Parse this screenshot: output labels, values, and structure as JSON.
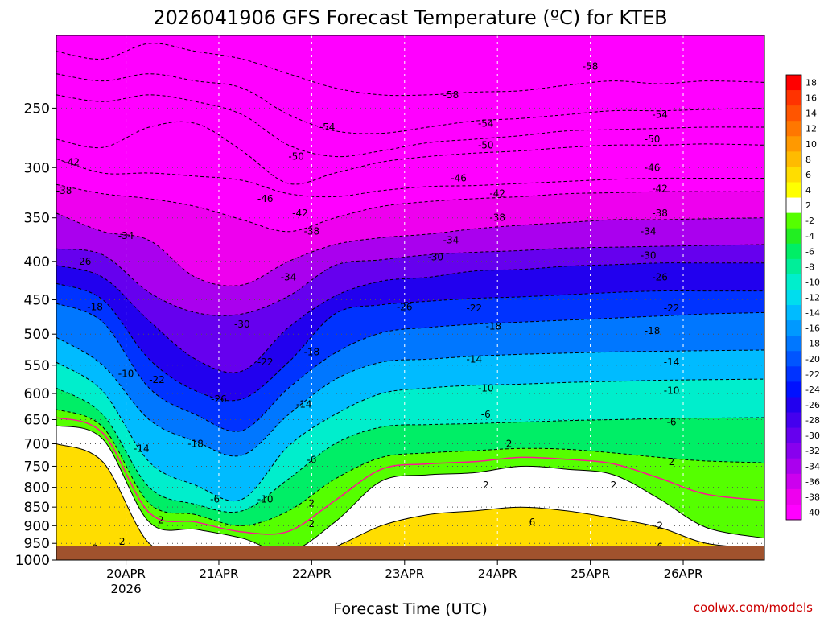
{
  "chart_data": {
    "type": "heatmap",
    "title": "2026041906 GFS Forecast Temperature (ºC) for KTEB",
    "xlabel": "Forecast Time (UTC)",
    "credit": "coolwx.com/models",
    "y_scale": "log-pressure",
    "y_axis_reversed": true,
    "ylim": [
      1000,
      200
    ],
    "y_ticks": [
      250,
      300,
      350,
      400,
      450,
      500,
      550,
      600,
      650,
      700,
      750,
      800,
      850,
      900,
      950,
      1000
    ],
    "x_ticks": [
      {
        "t": "2026-04-20T00Z",
        "label": "20APR",
        "sublabel": "2026"
      },
      {
        "t": "2026-04-21T00Z",
        "label": "21APR",
        "sublabel": ""
      },
      {
        "t": "2026-04-22T00Z",
        "label": "22APR",
        "sublabel": ""
      },
      {
        "t": "2026-04-23T00Z",
        "label": "23APR",
        "sublabel": ""
      },
      {
        "t": "2026-04-24T00Z",
        "label": "24APR",
        "sublabel": ""
      },
      {
        "t": "2026-04-25T00Z",
        "label": "25APR",
        "sublabel": ""
      },
      {
        "t": "2026-04-26T00Z",
        "label": "26APR",
        "sublabel": ""
      }
    ],
    "xlim": [
      "2026-04-19T06Z",
      "2026-04-26T21Z"
    ],
    "grid": true,
    "colorbar": {
      "placement": "right",
      "levels": [
        "18",
        "16",
        "14",
        "12",
        "10",
        "8",
        "6",
        "4",
        "2",
        "-2",
        "-4",
        "-6",
        "-8",
        "-10",
        "-12",
        "-14",
        "-16",
        "-18",
        "-20",
        "-22",
        "-24",
        "-26",
        "-28",
        "-30",
        "-32",
        "-34",
        "-36",
        "-38",
        "-40"
      ],
      "colors": [
        "#ff0000",
        "#ff3300",
        "#ff5500",
        "#ff7700",
        "#ff9900",
        "#ffbb00",
        "#ffdd00",
        "#ffff00",
        "#ffffff",
        "#55ff00",
        "#22ee22",
        "#00ee66",
        "#00ee99",
        "#00eecc",
        "#00ddee",
        "#00bbff",
        "#0099ff",
        "#0077ff",
        "#0055ff",
        "#0033ff",
        "#0011ff",
        "#2200ee",
        "#4400ee",
        "#6600ee",
        "#8800ee",
        "#aa00ee",
        "#cc00ee",
        "#ee00ee",
        "#ff00ff"
      ]
    },
    "isotherm_x_ticks": [
      "2026-04-19T06Z",
      "2026-04-19T18Z",
      "2026-04-20T06Z",
      "2026-04-20T18Z",
      "2026-04-21T06Z",
      "2026-04-21T18Z",
      "2026-04-22T06Z",
      "2026-04-22T18Z",
      "2026-04-23T06Z",
      "2026-04-23T18Z",
      "2026-04-24T06Z",
      "2026-04-24T18Z",
      "2026-04-25T06Z",
      "2026-04-25T18Z",
      "2026-04-26T06Z",
      "2026-04-26T21Z"
    ],
    "isotherms": [
      {
        "temp": -58,
        "p": [
          210,
          215,
          205,
          210,
          215,
          225,
          235,
          240,
          240,
          238,
          237,
          233,
          230,
          232,
          230,
          231
        ]
      },
      {
        "temp": -54,
        "p": [
          225,
          230,
          225,
          230,
          235,
          255,
          268,
          270,
          265,
          260,
          258,
          255,
          252,
          252,
          251,
          250
        ]
      },
      {
        "temp": -50,
        "p": [
          240,
          245,
          240,
          245,
          255,
          280,
          290,
          285,
          278,
          275,
          272,
          268,
          267,
          266,
          265,
          265
        ]
      },
      {
        "temp": -46,
        "p": [
          275,
          282,
          265,
          262,
          285,
          315,
          305,
          295,
          290,
          287,
          285,
          282,
          280,
          280,
          279,
          280
        ]
      },
      {
        "temp": -42,
        "p": [
          292,
          305,
          305,
          308,
          312,
          325,
          328,
          322,
          318,
          317,
          315,
          313,
          311,
          310,
          310,
          310
        ]
      },
      {
        "temp": -38,
        "p": [
          316,
          325,
          330,
          338,
          352,
          365,
          350,
          338,
          333,
          330,
          328,
          325,
          324,
          323,
          323,
          323
        ]
      },
      {
        "temp": -34,
        "p": [
          345,
          365,
          375,
          420,
          430,
          400,
          380,
          372,
          368,
          362,
          358,
          355,
          352,
          352,
          351,
          350
        ]
      },
      {
        "temp": -30,
        "p": [
          385,
          392,
          440,
          468,
          470,
          445,
          405,
          398,
          392,
          389,
          387,
          384,
          383,
          382,
          381,
          380
        ]
      },
      {
        "temp": -26,
        "p": [
          405,
          420,
          480,
          540,
          560,
          490,
          445,
          425,
          420,
          412,
          410,
          406,
          404,
          402,
          402,
          402
        ]
      },
      {
        "temp": -22,
        "p": [
          428,
          450,
          540,
          595,
          610,
          545,
          470,
          457,
          452,
          448,
          446,
          443,
          440,
          438,
          438,
          438
        ]
      },
      {
        "temp": -18,
        "p": [
          455,
          482,
          590,
          640,
          672,
          590,
          530,
          498,
          490,
          485,
          482,
          479,
          476,
          473,
          470,
          468
        ]
      },
      {
        "temp": -14,
        "p": [
          505,
          550,
          650,
          695,
          725,
          640,
          575,
          545,
          540,
          535,
          532,
          530,
          528,
          527,
          526,
          525
        ]
      },
      {
        "temp": -10,
        "p": [
          545,
          596,
          740,
          795,
          830,
          705,
          640,
          600,
          590,
          585,
          583,
          580,
          578,
          576,
          575,
          574
        ]
      },
      {
        "temp": -6,
        "p": [
          590,
          640,
          800,
          843,
          860,
          780,
          700,
          665,
          660,
          658,
          655,
          652,
          650,
          648,
          647,
          646
        ]
      },
      {
        "temp": -2,
        "p": [
          630,
          665,
          840,
          870,
          900,
          860,
          780,
          730,
          720,
          715,
          710,
          712,
          720,
          730,
          738,
          742
        ]
      },
      {
        "temp": 2,
        "p": [
          662,
          690,
          890,
          910,
          935,
          975,
          890,
          785,
          770,
          765,
          750,
          757,
          770,
          830,
          905,
          935
        ]
      },
      {
        "temp": 6,
        "p": [
          700,
          740,
          950,
          970,
          990,
          1000,
          960,
          900,
          870,
          860,
          850,
          860,
          880,
          905,
          950,
          965
        ]
      }
    ],
    "contour_labels": [
      {
        "t": "2026-04-19T10Z",
        "p": 295,
        "v": "-42"
      },
      {
        "t": "2026-04-19T08Z",
        "p": 322,
        "v": "-38"
      },
      {
        "t": "2026-04-20T00Z",
        "p": 370,
        "v": "-34"
      },
      {
        "t": "2026-04-19T13Z",
        "p": 400,
        "v": "-26"
      },
      {
        "t": "2026-04-19T16Z",
        "p": 460,
        "v": "-18"
      },
      {
        "t": "2026-04-20T00Z",
        "p": 565,
        "v": "-10"
      },
      {
        "t": "2026-04-20T08Z",
        "p": 575,
        "v": "-22"
      },
      {
        "t": "2026-04-20T04Z",
        "p": 710,
        "v": "-14"
      },
      {
        "t": "2026-04-20T18Z",
        "p": 700,
        "v": "-18"
      },
      {
        "t": "2026-04-21T00Z",
        "p": 610,
        "v": "-26"
      },
      {
        "t": "2026-04-21T06Z",
        "p": 485,
        "v": "-30"
      },
      {
        "t": "2026-04-21T12Z",
        "p": 545,
        "v": "-22"
      },
      {
        "t": "2026-04-21T18Z",
        "p": 420,
        "v": "-34"
      },
      {
        "t": "2026-04-21T12Z",
        "p": 330,
        "v": "-46"
      },
      {
        "t": "2026-04-21T21Z",
        "p": 345,
        "v": "-42"
      },
      {
        "t": "2026-04-22T00Z",
        "p": 365,
        "v": "-38"
      },
      {
        "t": "2026-04-21T20Z",
        "p": 290,
        "v": "-50"
      },
      {
        "t": "2026-04-22T04Z",
        "p": 265,
        "v": "-54"
      },
      {
        "t": "2026-04-22T00Z",
        "p": 528,
        "v": "-18"
      },
      {
        "t": "2026-04-21T22Z",
        "p": 620,
        "v": "-14"
      },
      {
        "t": "2026-04-20T23Z",
        "p": 830,
        "v": "-6"
      },
      {
        "t": "2026-04-21T12Z",
        "p": 830,
        "v": "-10"
      },
      {
        "t": "2026-04-20T09Z",
        "p": 885,
        "v": "2"
      },
      {
        "t": "2026-04-19T23Z",
        "p": 945,
        "v": "2"
      },
      {
        "t": "2026-04-22T00Z",
        "p": 735,
        "v": "-6"
      },
      {
        "t": "2026-04-22T00Z",
        "p": 840,
        "v": "2"
      },
      {
        "t": "2026-04-22T00Z",
        "p": 895,
        "v": "2"
      },
      {
        "t": "2026-04-23T00Z",
        "p": 460,
        "v": "-26"
      },
      {
        "t": "2026-04-23T08Z",
        "p": 395,
        "v": "-30"
      },
      {
        "t": "2026-04-23T12Z",
        "p": 375,
        "v": "-34"
      },
      {
        "t": "2026-04-23T14Z",
        "p": 310,
        "v": "-46"
      },
      {
        "t": "2026-04-23T12Z",
        "p": 240,
        "v": "-58"
      },
      {
        "t": "2026-04-23T21Z",
        "p": 262,
        "v": "-54"
      },
      {
        "t": "2026-04-23T21Z",
        "p": 280,
        "v": "-50"
      },
      {
        "t": "2026-04-24T00Z",
        "p": 325,
        "v": "-42"
      },
      {
        "t": "2026-04-24T00Z",
        "p": 350,
        "v": "-38"
      },
      {
        "t": "2026-04-23T18Z",
        "p": 462,
        "v": "-22"
      },
      {
        "t": "2026-04-23T23Z",
        "p": 488,
        "v": "-18"
      },
      {
        "t": "2026-04-23T18Z",
        "p": 540,
        "v": "-14"
      },
      {
        "t": "2026-04-23T21Z",
        "p": 590,
        "v": "-10"
      },
      {
        "t": "2026-04-23T21Z",
        "p": 640,
        "v": "-6"
      },
      {
        "t": "2026-04-24T03Z",
        "p": 700,
        "v": "2"
      },
      {
        "t": "2026-04-23T21Z",
        "p": 795,
        "v": "2"
      },
      {
        "t": "2026-04-24T09Z",
        "p": 890,
        "v": "6"
      },
      {
        "t": "2026-04-25T00Z",
        "p": 220,
        "v": "-58"
      },
      {
        "t": "2026-04-25T18Z",
        "p": 255,
        "v": "-54"
      },
      {
        "t": "2026-04-25T16Z",
        "p": 275,
        "v": "-50"
      },
      {
        "t": "2026-04-25T16Z",
        "p": 300,
        "v": "-46"
      },
      {
        "t": "2026-04-25T18Z",
        "p": 320,
        "v": "-42"
      },
      {
        "t": "2026-04-25T18Z",
        "p": 345,
        "v": "-38"
      },
      {
        "t": "2026-04-25T15Z",
        "p": 365,
        "v": "-34"
      },
      {
        "t": "2026-04-25T15Z",
        "p": 393,
        "v": "-30"
      },
      {
        "t": "2026-04-25T18Z",
        "p": 420,
        "v": "-26"
      },
      {
        "t": "2026-04-25T21Z",
        "p": 462,
        "v": "-22"
      },
      {
        "t": "2026-04-25T16Z",
        "p": 495,
        "v": "-18"
      },
      {
        "t": "2026-04-25T21Z",
        "p": 545,
        "v": "-14"
      },
      {
        "t": "2026-04-25T21Z",
        "p": 595,
        "v": "-10"
      },
      {
        "t": "2026-04-25T21Z",
        "p": 655,
        "v": "-6"
      },
      {
        "t": "2026-04-25T21Z",
        "p": 740,
        "v": "2"
      },
      {
        "t": "2026-04-25T06Z",
        "p": 795,
        "v": "2"
      },
      {
        "t": "2026-04-25T18Z",
        "p": 900,
        "v": "2"
      },
      {
        "t": "2026-04-25T18Z",
        "p": 960,
        "v": "6"
      },
      {
        "t": "2026-04-19T16Z",
        "p": 965,
        "v": "2"
      }
    ],
    "ground_color": "#a0522d",
    "freezing_line_color": "#ff1493"
  }
}
